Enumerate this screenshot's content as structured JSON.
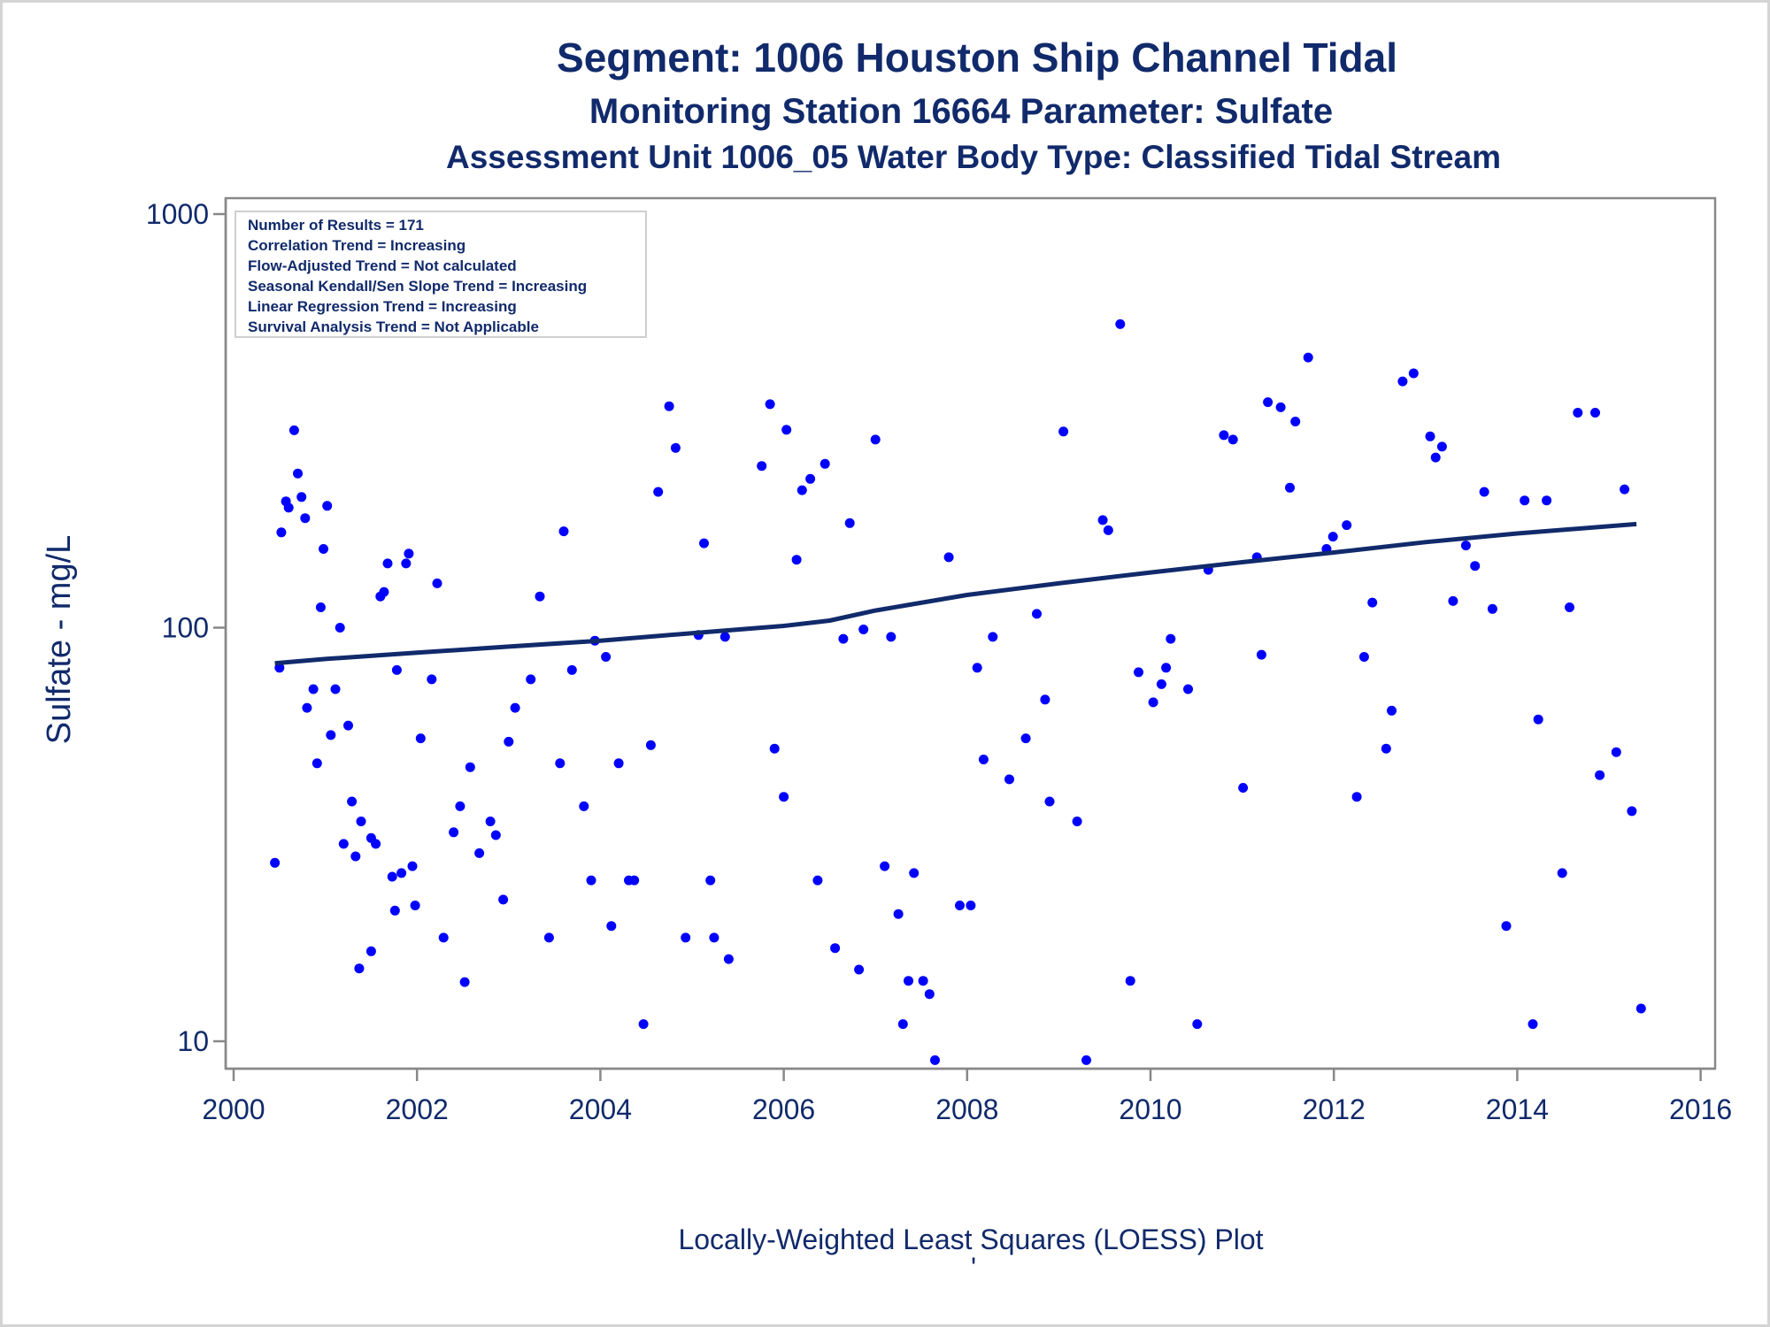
{
  "titles": {
    "line1": "Segment: 1006  Houston Ship Channel Tidal",
    "line2": "Monitoring Station 16664 Parameter: Sulfate",
    "line3": "Assessment Unit 1006_05   Water Body Type: Classified Tidal Stream"
  },
  "footnote": "Locally-Weighted Least Squares (LOESS) Plot",
  "footnote2": "'",
  "stats_box": [
    "Number of Results = 171",
    "Correlation Trend = Increasing",
    "Flow-Adjusted Trend = Not calculated",
    "Seasonal Kendall/Sen Slope Trend = Increasing",
    "Linear Regression Trend = Increasing",
    "Survival Analysis Trend = Not Applicable"
  ],
  "colors": {
    "points": "#0000ff",
    "line": "#112a6b",
    "text": "#112a6b",
    "axis": "#888888"
  },
  "chart_data": {
    "type": "scatter",
    "title": "Segment: 1006  Houston Ship Channel Tidal",
    "xlabel": "",
    "ylabel": "Sulfate - mg/L",
    "yscale": "log",
    "xlim": [
      2000,
      2016
    ],
    "ylim": [
      8,
      1270
    ],
    "x_ticks": [
      "2000",
      "2002",
      "2004",
      "2006",
      "2008",
      "2010",
      "2012",
      "2014",
      "2016"
    ],
    "y_ticks": [
      "10",
      "100",
      "1000"
    ],
    "grid": false,
    "series": [
      {
        "mode": "markers",
        "points": [
          [
            2000.45,
            27
          ],
          [
            2000.5,
            80
          ],
          [
            2000.52,
            170
          ],
          [
            2000.57,
            202
          ],
          [
            2000.6,
            195
          ],
          [
            2000.66,
            300
          ],
          [
            2000.7,
            236
          ],
          [
            2000.74,
            207
          ],
          [
            2000.78,
            184
          ],
          [
            2000.8,
            64
          ],
          [
            2000.87,
            71
          ],
          [
            2000.91,
            47
          ],
          [
            2000.95,
            112
          ],
          [
            2000.98,
            155
          ],
          [
            2001.02,
            197
          ],
          [
            2001.06,
            55
          ],
          [
            2001.11,
            71
          ],
          [
            2001.16,
            100
          ],
          [
            2001.2,
            30
          ],
          [
            2001.25,
            58
          ],
          [
            2001.29,
            38
          ],
          [
            2001.33,
            28
          ],
          [
            2001.37,
            15
          ],
          [
            2001.39,
            34
          ],
          [
            2001.5,
            16.5
          ],
          [
            2001.5,
            31
          ],
          [
            2001.55,
            30
          ],
          [
            2001.6,
            119
          ],
          [
            2001.64,
            122
          ],
          [
            2001.68,
            143
          ],
          [
            2001.73,
            25
          ],
          [
            2001.76,
            20.7
          ],
          [
            2001.78,
            79
          ],
          [
            2001.83,
            25.5
          ],
          [
            2001.88,
            143
          ],
          [
            2001.91,
            151
          ],
          [
            2001.95,
            26.5
          ],
          [
            2001.98,
            21.3
          ],
          [
            2002.04,
            54
          ],
          [
            2002.16,
            75
          ],
          [
            2002.22,
            128
          ],
          [
            2002.29,
            17.8
          ],
          [
            2002.4,
            32
          ],
          [
            2002.47,
            37
          ],
          [
            2002.52,
            13.9
          ],
          [
            2002.58,
            46
          ],
          [
            2002.68,
            28.5
          ],
          [
            2002.8,
            34
          ],
          [
            2002.86,
            31.5
          ],
          [
            2002.94,
            22
          ],
          [
            2003.0,
            53
          ],
          [
            2003.07,
            64
          ],
          [
            2003.24,
            75
          ],
          [
            2003.34,
            119
          ],
          [
            2003.44,
            17.8
          ],
          [
            2003.56,
            47
          ],
          [
            2003.6,
            171
          ],
          [
            2003.69,
            79
          ],
          [
            2003.82,
            37
          ],
          [
            2003.9,
            24.5
          ],
          [
            2003.94,
            93
          ],
          [
            2004.06,
            85
          ],
          [
            2004.12,
            19
          ],
          [
            2004.2,
            47
          ],
          [
            2004.31,
            24.5
          ],
          [
            2004.37,
            24.5
          ],
          [
            2004.47,
            11
          ],
          [
            2004.55,
            52
          ],
          [
            2004.63,
            213
          ],
          [
            2004.75,
            343
          ],
          [
            2004.82,
            272
          ],
          [
            2004.93,
            17.8
          ],
          [
            2005.07,
            96
          ],
          [
            2005.13,
            160
          ],
          [
            2005.2,
            24.5
          ],
          [
            2005.24,
            17.8
          ],
          [
            2005.36,
            95
          ],
          [
            2005.4,
            15.8
          ],
          [
            2005.76,
            246
          ],
          [
            2005.85,
            347
          ],
          [
            2005.9,
            51
          ],
          [
            2006.0,
            39
          ],
          [
            2006.03,
            301
          ],
          [
            2006.14,
            146
          ],
          [
            2006.2,
            215
          ],
          [
            2006.29,
            229
          ],
          [
            2006.37,
            24.5
          ],
          [
            2006.45,
            249
          ],
          [
            2006.56,
            16.8
          ],
          [
            2006.65,
            94
          ],
          [
            2006.72,
            179
          ],
          [
            2006.82,
            14.9
          ],
          [
            2006.87,
            99
          ],
          [
            2007.0,
            285
          ],
          [
            2007.1,
            26.5
          ],
          [
            2007.17,
            95
          ],
          [
            2007.25,
            20.3
          ],
          [
            2007.3,
            11
          ],
          [
            2007.36,
            14
          ],
          [
            2007.42,
            25.5
          ],
          [
            2007.52,
            14
          ],
          [
            2007.59,
            13
          ],
          [
            2007.65,
            9
          ],
          [
            2007.8,
            148
          ],
          [
            2007.92,
            21.3
          ],
          [
            2008.04,
            21.3
          ],
          [
            2008.11,
            80
          ],
          [
            2008.18,
            48
          ],
          [
            2008.28,
            95
          ],
          [
            2008.46,
            43
          ],
          [
            2008.64,
            54
          ],
          [
            2008.76,
            108
          ],
          [
            2008.85,
            67
          ],
          [
            2008.9,
            38
          ],
          [
            2009.05,
            298
          ],
          [
            2009.2,
            34
          ],
          [
            2009.3,
            9
          ],
          [
            2009.48,
            182
          ],
          [
            2009.54,
            172
          ],
          [
            2009.67,
            542
          ],
          [
            2009.78,
            14
          ],
          [
            2009.87,
            78
          ],
          [
            2010.03,
            66
          ],
          [
            2010.12,
            73
          ],
          [
            2010.17,
            80
          ],
          [
            2010.22,
            94
          ],
          [
            2010.41,
            71
          ],
          [
            2010.51,
            11
          ],
          [
            2010.63,
            138
          ],
          [
            2010.8,
            292
          ],
          [
            2010.9,
            285
          ],
          [
            2011.01,
            41
          ],
          [
            2011.16,
            148
          ],
          [
            2011.21,
            86
          ],
          [
            2011.28,
            351
          ],
          [
            2011.42,
            341
          ],
          [
            2011.52,
            218
          ],
          [
            2011.58,
            315
          ],
          [
            2011.72,
            450
          ],
          [
            2011.92,
            155
          ],
          [
            2011.99,
            166
          ],
          [
            2012.14,
            177
          ],
          [
            2012.25,
            39
          ],
          [
            2012.33,
            85
          ],
          [
            2012.42,
            115
          ],
          [
            2012.57,
            51
          ],
          [
            2012.63,
            63
          ],
          [
            2012.75,
            394
          ],
          [
            2012.87,
            412
          ],
          [
            2013.05,
            290
          ],
          [
            2013.11,
            258
          ],
          [
            2013.18,
            274
          ],
          [
            2013.3,
            116
          ],
          [
            2013.44,
            158
          ],
          [
            2013.54,
            141
          ],
          [
            2013.64,
            213
          ],
          [
            2013.73,
            111
          ],
          [
            2013.88,
            19
          ],
          [
            2014.08,
            203
          ],
          [
            2014.17,
            11
          ],
          [
            2014.23,
            60
          ],
          [
            2014.32,
            203
          ],
          [
            2014.49,
            25.5
          ],
          [
            2014.57,
            112
          ],
          [
            2014.66,
            331
          ],
          [
            2014.85,
            331
          ],
          [
            2014.9,
            44
          ],
          [
            2015.08,
            50
          ],
          [
            2015.17,
            216
          ],
          [
            2015.25,
            36
          ],
          [
            2015.35,
            12
          ]
        ]
      },
      {
        "name": "LOESS",
        "mode": "line",
        "points": [
          [
            2000.45,
            82
          ],
          [
            2001.0,
            84
          ],
          [
            2002.0,
            87
          ],
          [
            2003.0,
            90
          ],
          [
            2004.0,
            93
          ],
          [
            2005.0,
            97
          ],
          [
            2006.0,
            101
          ],
          [
            2006.5,
            104
          ],
          [
            2007.0,
            110
          ],
          [
            2008.0,
            120
          ],
          [
            2009.0,
            128
          ],
          [
            2010.0,
            136
          ],
          [
            2011.0,
            144
          ],
          [
            2012.0,
            152
          ],
          [
            2013.0,
            161
          ],
          [
            2014.0,
            169
          ],
          [
            2015.3,
            178
          ]
        ]
      }
    ]
  }
}
